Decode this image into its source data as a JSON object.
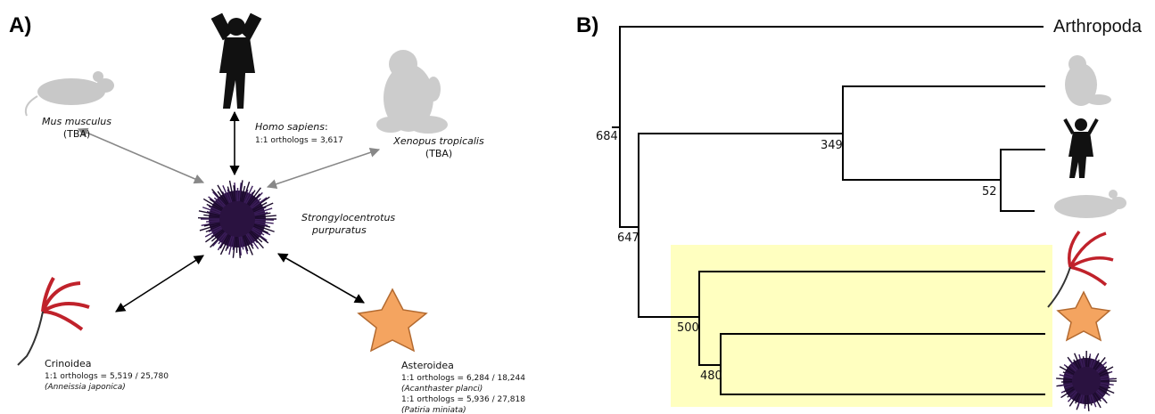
{
  "panel_a": {
    "label": "A)",
    "mouse": {
      "name": "Mus musculus",
      "note": "(TBA)"
    },
    "human": {
      "name": "Homo sapiens",
      "suffix": ":",
      "orthologs": "1:1 orthologs = 3,617"
    },
    "frog": {
      "name": "Xenopus tropicalis",
      "note": "(TBA)"
    },
    "urchin": {
      "name_line1": "Strongylocentrotus",
      "name_line2": "purpuratus"
    },
    "crinoid": {
      "group": "Crinoidea",
      "orthologs": "1:1 orthologs = 5,519 / 25,780",
      "species": "(Anneissia japonica)"
    },
    "starfish": {
      "group": "Asteroidea",
      "orthologs_1": "1:1 orthologs = 6,284 / 18,244",
      "species_1": "(Acanthaster planci)",
      "orthologs_2": "1:1 orthologs = 5,936 / 27,818",
      "species_2": "(Patiria miniata)"
    }
  },
  "panel_b": {
    "label": "B)",
    "outgroup": "Arthropoda",
    "node_support": {
      "root": 684,
      "vertebrates": 349,
      "mammals": 52,
      "deuterostomes": 647,
      "echinoderms": 500,
      "eleutherozoa": 480
    }
  }
}
